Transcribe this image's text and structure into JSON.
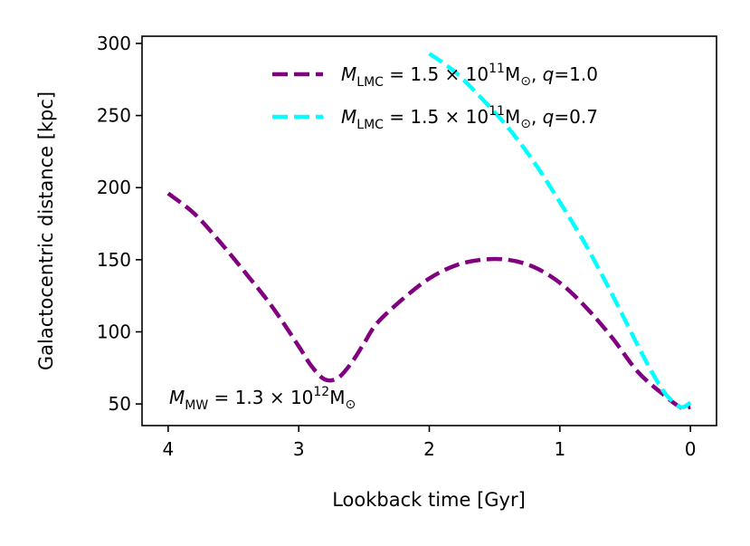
{
  "chart_data": {
    "type": "line",
    "xlabel": "Lookback time [Gyr]",
    "ylabel": "Galactocentric distance [kpc]",
    "xlim": [
      4.2,
      -0.2
    ],
    "ylim": [
      35,
      305
    ],
    "x_ticks": [
      4,
      3,
      2,
      1,
      0
    ],
    "y_ticks": [
      50,
      100,
      150,
      200,
      250,
      300
    ],
    "grid": false,
    "legend_position": "upper-right",
    "annotation": {
      "prefix": "M",
      "subscript": "MW",
      "middle": " = 1.3 × 10",
      "superscript": "12",
      "unit": "M",
      "unit_subscript": "⊙"
    },
    "series": [
      {
        "label": {
          "prefix": "M",
          "subscript": "LMC",
          "middle": " = 1.5 × 10",
          "superscript": "11",
          "unit": "M",
          "unit_subscript": "⊙",
          "suffix_q": "q",
          "suffix_val": "=1.0"
        },
        "color": "#800080",
        "linestyle": "dashed",
        "x": [
          4.0,
          3.8,
          3.6,
          3.4,
          3.2,
          3.0,
          2.9,
          2.8,
          2.7,
          2.6,
          2.5,
          2.4,
          2.2,
          2.0,
          1.8,
          1.6,
          1.4,
          1.2,
          1.0,
          0.8,
          0.6,
          0.4,
          0.2,
          0.1,
          0.05,
          0.0
        ],
        "y": [
          196,
          182,
          162,
          140,
          117,
          90,
          76,
          67,
          68,
          78,
          92,
          106,
          123,
          137,
          146,
          150,
          150,
          145,
          134,
          117,
          96,
          72,
          56,
          49,
          47,
          48
        ]
      },
      {
        "label": {
          "prefix": "M",
          "subscript": "LMC",
          "middle": " = 1.5 × 10",
          "superscript": "11",
          "unit": "M",
          "unit_subscript": "⊙",
          "suffix_q": "q",
          "suffix_val": "=0.7"
        },
        "color": "#00ffff",
        "linestyle": "dashed",
        "x": [
          2.0,
          1.8,
          1.6,
          1.4,
          1.2,
          1.0,
          0.8,
          0.6,
          0.4,
          0.3,
          0.2,
          0.1,
          0.05,
          0.0
        ],
        "y": [
          293,
          280,
          262,
          242,
          218,
          190,
          160,
          126,
          90,
          73,
          58,
          49,
          48,
          51
        ]
      }
    ]
  }
}
